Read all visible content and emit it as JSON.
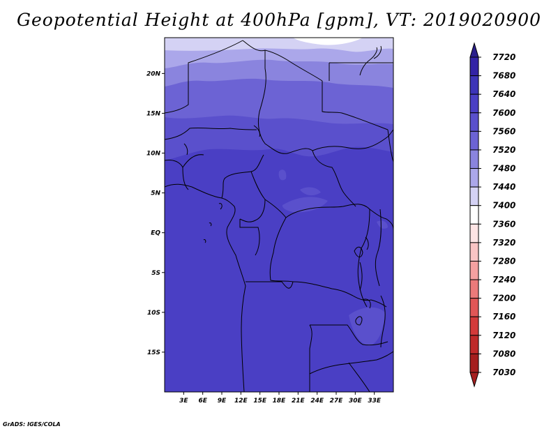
{
  "title": "Geopotential Height at 400hPa [gpm], VT: 2019020900",
  "credit": "GrADS: IGES/COLA",
  "map": {
    "variable": "Geopotential Height",
    "level": "400hPa",
    "units": "gpm",
    "valid_time": "2019020900",
    "lon_range": [
      0,
      36
    ],
    "lat_range": [
      -20,
      24.5
    ],
    "lon_ticks": [
      "3E",
      "6E",
      "9E",
      "12E",
      "15E",
      "18E",
      "21E",
      "24E",
      "27E",
      "30E",
      "33E"
    ],
    "lat_ticks": [
      "20N",
      "15N",
      "10N",
      "5N",
      "EQ",
      "5S",
      "10S",
      "15S"
    ]
  },
  "colorbar": {
    "levels": [
      "7720",
      "7680",
      "7640",
      "7600",
      "7560",
      "7520",
      "7480",
      "7440",
      "7400",
      "7360",
      "7320",
      "7280",
      "7240",
      "7200",
      "7160",
      "7120",
      "7080",
      "7030"
    ],
    "colors": [
      "#2a1f8c",
      "#3323a6",
      "#3d34b8",
      "#4a3fc4",
      "#5a50cc",
      "#6c63d4",
      "#8a84de",
      "#aba7ea",
      "#d4d2f4",
      "#ffffff",
      "#fde4e4",
      "#f9c4c4",
      "#f4a0a0",
      "#ec7a7a",
      "#e15656",
      "#d33a3a",
      "#bf2a2a",
      "#a51f1f"
    ]
  }
}
